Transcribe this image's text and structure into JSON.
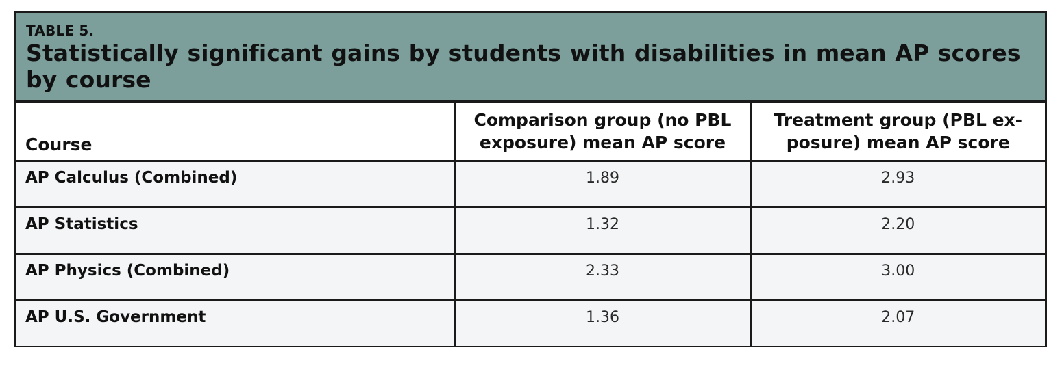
{
  "table": {
    "label": "TABLE 5.",
    "title": "Statistically significant gains by students with disabilities in mean AP scores by course",
    "columns": [
      "Course",
      "Comparison group (no PBL exposure) mean AP score",
      "Treatment group (PBL exposure) mean AP score"
    ],
    "column_lines": [
      [
        "Course"
      ],
      [
        "Comparison group (no PBL",
        "exposure) mean AP score"
      ],
      [
        "Treatment group (PBL ex-",
        "posure) mean AP score"
      ]
    ],
    "rows": [
      {
        "course": "AP Calculus (Combined)",
        "comparison": "1.89",
        "treatment": "2.93"
      },
      {
        "course": "AP Statistics",
        "comparison": "1.32",
        "treatment": "2.20"
      },
      {
        "course": "AP Physics (Combined)",
        "comparison": "2.33",
        "treatment": "3.00"
      },
      {
        "course": "AP U.S. Government",
        "comparison": "1.36",
        "treatment": "2.07"
      }
    ]
  },
  "colors": {
    "caption_background": "#7c9f9c",
    "row_background": "#f4f5f7",
    "border": "#1a1a1a"
  }
}
